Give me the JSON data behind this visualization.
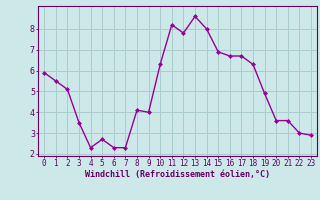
{
  "x": [
    0,
    1,
    2,
    3,
    4,
    5,
    6,
    7,
    8,
    9,
    10,
    11,
    12,
    13,
    14,
    15,
    16,
    17,
    18,
    19,
    20,
    21,
    22,
    23
  ],
  "y": [
    5.9,
    5.5,
    5.1,
    3.5,
    2.3,
    2.7,
    2.3,
    2.3,
    4.1,
    4.0,
    6.3,
    8.2,
    7.8,
    8.6,
    8.0,
    6.9,
    6.7,
    6.7,
    6.3,
    4.9,
    3.6,
    3.6,
    3.0,
    2.9
  ],
  "line_color": "#990099",
  "marker": "D",
  "marker_size": 2.0,
  "bg_color": "#cce8e8",
  "grid_color": "#aacccc",
  "xlabel": "Windchill (Refroidissement éolien,°C)",
  "xlim": [
    -0.5,
    23.5
  ],
  "ylim": [
    1.9,
    9.1
  ],
  "yticks": [
    2,
    3,
    4,
    5,
    6,
    7,
    8
  ],
  "xticks": [
    0,
    1,
    2,
    3,
    4,
    5,
    6,
    7,
    8,
    9,
    10,
    11,
    12,
    13,
    14,
    15,
    16,
    17,
    18,
    19,
    20,
    21,
    22,
    23
  ],
  "spine_color": "#660066",
  "tick_color": "#660066",
  "xlabel_color": "#660066",
  "xlabel_fontsize": 6.0,
  "tick_fontsize": 5.5,
  "ytick_fontsize": 6.0,
  "linewidth": 1.0
}
